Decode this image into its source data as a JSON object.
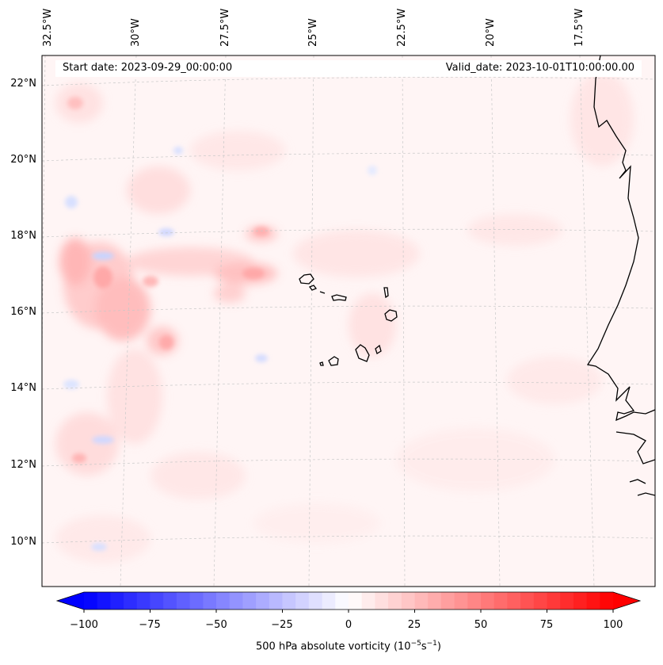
{
  "map": {
    "start_date": "Start date: 2023-09-29_00:00:00",
    "valid_date": "Valid_date: 2023-10-01T10:00:00.00",
    "lon_labels": [
      "32.5°W",
      "30°W",
      "27.5°W",
      "25°W",
      "22.5°W",
      "20°W",
      "17.5°W"
    ],
    "lat_labels": [
      "22°N",
      "20°N",
      "18°N",
      "16°N",
      "14°N",
      "12°N",
      "10°N"
    ],
    "field": "500 hPa absolute vorticity",
    "region": "Cabo Verde / West Africa coast"
  },
  "colorbar": {
    "label_prefix": "500 hPa absolute vorticity (10",
    "label_exp1": "−5",
    "label_mid": "s",
    "label_exp2": "−1",
    "label_suffix": ")",
    "ticks": [
      "−100",
      "−75",
      "−50",
      "−25",
      "0",
      "25",
      "50",
      "75",
      "100"
    ],
    "min": -100,
    "max": 100,
    "color_min": "#0000ff",
    "color_mid": "#ffffff",
    "color_max": "#ff0000"
  }
}
